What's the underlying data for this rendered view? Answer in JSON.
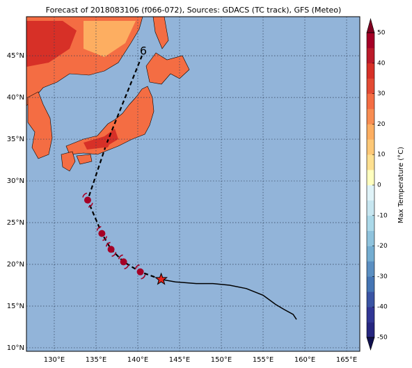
{
  "map": {
    "title": "Forecast of 2018083106 (f066-072), Sources: GDACS (TC track), GFS (Meteo)",
    "lonlim": [
      126.67,
      166.58
    ],
    "latlim": [
      9.58,
      49.68
    ],
    "lon_ticks": [
      {
        "value": 130,
        "label": "130°E"
      },
      {
        "value": 135,
        "label": "135°E"
      },
      {
        "value": 140,
        "label": "140°E"
      },
      {
        "value": 145,
        "label": "145°E"
      },
      {
        "value": 150,
        "label": "150°E"
      },
      {
        "value": 155,
        "label": "155°E"
      },
      {
        "value": 160,
        "label": "160°E"
      },
      {
        "value": 165,
        "label": "165°E"
      }
    ],
    "lat_ticks": [
      {
        "value": 10,
        "label": "10°N"
      },
      {
        "value": 15,
        "label": "15°N"
      },
      {
        "value": 20,
        "label": "20°N"
      },
      {
        "value": 25,
        "label": "25°N"
      },
      {
        "value": 30,
        "label": "30°N"
      },
      {
        "value": 35,
        "label": "35°N"
      },
      {
        "value": 40,
        "label": "40°N"
      },
      {
        "value": 45,
        "label": "45°N"
      }
    ],
    "ocean_color": "#92b4d9",
    "current_position": {
      "lon": 142.8,
      "lat": 18.2
    },
    "forecast_track": {
      "lon": [
        142.8,
        140.3,
        138.3,
        136.8,
        135.7,
        134.0,
        136.2,
        140.5
      ],
      "lat": [
        18.2,
        19.1,
        20.3,
        21.8,
        23.7,
        27.7,
        34.3,
        45.0
      ]
    },
    "past_track": {
      "lon": [
        142.8,
        144.5,
        147,
        149,
        151,
        153,
        155,
        156.5,
        157.5,
        158.6,
        159.0
      ],
      "lat": [
        18.2,
        17.9,
        17.7,
        17.7,
        17.5,
        17.1,
        16.3,
        15.2,
        14.6,
        14.0,
        13.4
      ]
    }
  },
  "colorbar": {
    "label": "Max Temperature (°C)",
    "lim": [
      -50,
      50
    ],
    "ticks": [
      -50,
      -40,
      -30,
      -20,
      -10,
      0,
      10,
      20,
      30,
      40,
      50
    ],
    "colors": [
      "#262680",
      "#313695",
      "#3a54a4",
      "#4575b4",
      "#5b8fc2",
      "#74add1",
      "#8fc3dd",
      "#abd9e9",
      "#c7e6f0",
      "#e0f3f8",
      "#ffffbf",
      "#fee090",
      "#fdc877",
      "#fdae61",
      "#f88d52",
      "#f46d43",
      "#e34a33",
      "#d73027",
      "#bb1a2a",
      "#a50026"
    ],
    "under_color": "#10104e",
    "over_color": "#800020"
  }
}
